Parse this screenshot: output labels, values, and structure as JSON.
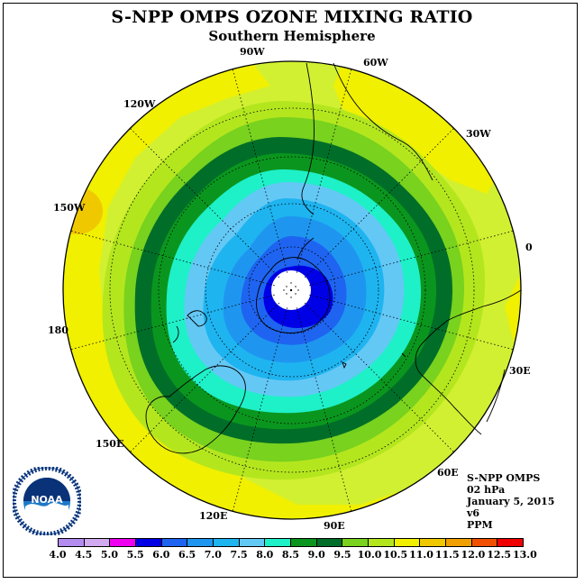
{
  "title": "S-NPP OMPS OZONE MIXING RATIO",
  "subtitle": "Southern Hemisphere",
  "longitude_labels": [
    {
      "key": "90W",
      "text": "90W"
    },
    {
      "key": "60W",
      "text": "60W"
    },
    {
      "key": "30W",
      "text": "30W"
    },
    {
      "key": "0",
      "text": "0"
    },
    {
      "key": "30E",
      "text": "30E"
    },
    {
      "key": "60E",
      "text": "60E"
    },
    {
      "key": "90E",
      "text": "90E"
    },
    {
      "key": "120E",
      "text": "120E"
    },
    {
      "key": "150E",
      "text": "150E"
    },
    {
      "key": "180",
      "text": "180"
    },
    {
      "key": "150W",
      "text": "150W"
    },
    {
      "key": "120W",
      "text": "120W"
    }
  ],
  "info": {
    "instrument": "S-NPP OMPS",
    "level": "02 hPa",
    "date": "January 5, 2015",
    "version": "v6",
    "units": "PPM"
  },
  "logo_text": "NOAA",
  "legend": {
    "ticks": [
      "4.0",
      "4.5",
      "5.0",
      "5.5",
      "6.0",
      "6.5",
      "7.0",
      "7.5",
      "8.0",
      "8.5",
      "9.0",
      "9.5",
      "10.0",
      "10.5",
      "11.0",
      "11.5",
      "12.0",
      "12.5",
      "13.0"
    ],
    "colors": [
      "#b48cf0",
      "#d2aaf0",
      "#f000f0",
      "#0000e6",
      "#1e64f0",
      "#1e96f0",
      "#1eb4f0",
      "#64c8f5",
      "#1ef0c8",
      "#0a961e",
      "#006e28",
      "#78d21e",
      "#b4e61e",
      "#f0f000",
      "#f0c800",
      "#f0a000",
      "#f05000",
      "#f00000",
      "#8c5a3c"
    ]
  },
  "map_data": {
    "projection": "polar stereographic (south pole centred)",
    "field": "ozone mixing ratio",
    "level": "02 hPa",
    "units": "PPM",
    "colors": {
      "background_zone": "#d2f032",
      "warm_zone": "#f0f000",
      "max_zone": "#f0c800",
      "polar_hole": "#ffffff"
    }
  }
}
